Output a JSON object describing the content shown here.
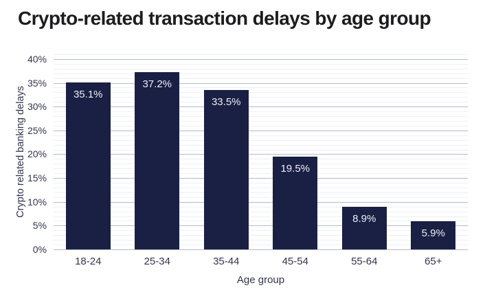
{
  "header": {
    "title": "Crypto-related transaction delays by age group"
  },
  "chart_data": {
    "type": "bar",
    "title": "Crypto-related transaction delays by age group",
    "categories": [
      "18-24",
      "25-34",
      "35-44",
      "45-54",
      "55-64",
      "65+"
    ],
    "values": [
      35.1,
      37.2,
      33.5,
      19.5,
      8.9,
      5.9
    ],
    "value_labels": [
      "35.1%",
      "37.2%",
      "33.5%",
      "19.5%",
      "8.9%",
      "5.9%"
    ],
    "xlabel": "Age group",
    "ylabel": "Crypto related banking delays",
    "y_axis": {
      "min": 0,
      "max": 41,
      "major_step": 5,
      "minor_step": 1,
      "tick_suffix": "%",
      "major_ticks": [
        0,
        5,
        10,
        15,
        20,
        25,
        30,
        35,
        40
      ],
      "tick_labels": [
        "0%",
        "5%",
        "10%",
        "15%",
        "20%",
        "25%",
        "30%",
        "35%",
        "40%"
      ]
    },
    "grid": {
      "major": true,
      "minor": true
    },
    "legend": "none",
    "colors": {
      "bar": "#1a1f44",
      "bar_label": "#edeff6",
      "grid_major": "#b3bac9",
      "grid_minor": "#eef0f5",
      "axis_text": "#32344d",
      "title_text": "#1d1d20",
      "background": "#ffffff"
    }
  }
}
